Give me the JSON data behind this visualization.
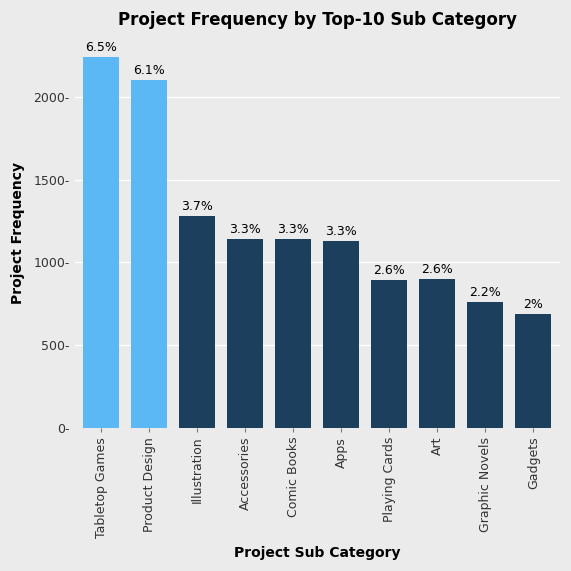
{
  "title": "Project Frequency by Top-10 Sub Category",
  "xlabel": "Project Sub Category",
  "ylabel": "Project Frequency",
  "categories": [
    "Tabletop Games",
    "Product Design",
    "Illustration",
    "Accessories",
    "Comic Books",
    "Apps",
    "Playing Cards",
    "Art",
    "Graphic Novels",
    "Gadgets"
  ],
  "values": [
    2240,
    2105,
    1278,
    1143,
    1140,
    1130,
    895,
    898,
    760,
    688
  ],
  "percentages": [
    "6.5%",
    "6.1%",
    "3.7%",
    "3.3%",
    "3.3%",
    "3.3%",
    "2.6%",
    "2.6%",
    "2.2%",
    "2%"
  ],
  "bar_colors": [
    "#5BB8F5",
    "#5BB8F5",
    "#1C3F5E",
    "#1C3F5E",
    "#1C3F5E",
    "#1C3F5E",
    "#1C3F5E",
    "#1C3F5E",
    "#1C3F5E",
    "#1C3F5E"
  ],
  "background_color": "#EBEBEB",
  "plot_bg_color": "#EBEBEB",
  "grid_color": "#FFFFFF",
  "ylim": [
    0,
    2350
  ],
  "yticks": [
    0,
    500,
    1000,
    1500,
    2000
  ],
  "ytick_labels": [
    "0",
    "500",
    "1000",
    "1500",
    "2000"
  ],
  "title_fontsize": 12,
  "label_fontsize": 10,
  "tick_fontsize": 9,
  "annot_fontsize": 9
}
